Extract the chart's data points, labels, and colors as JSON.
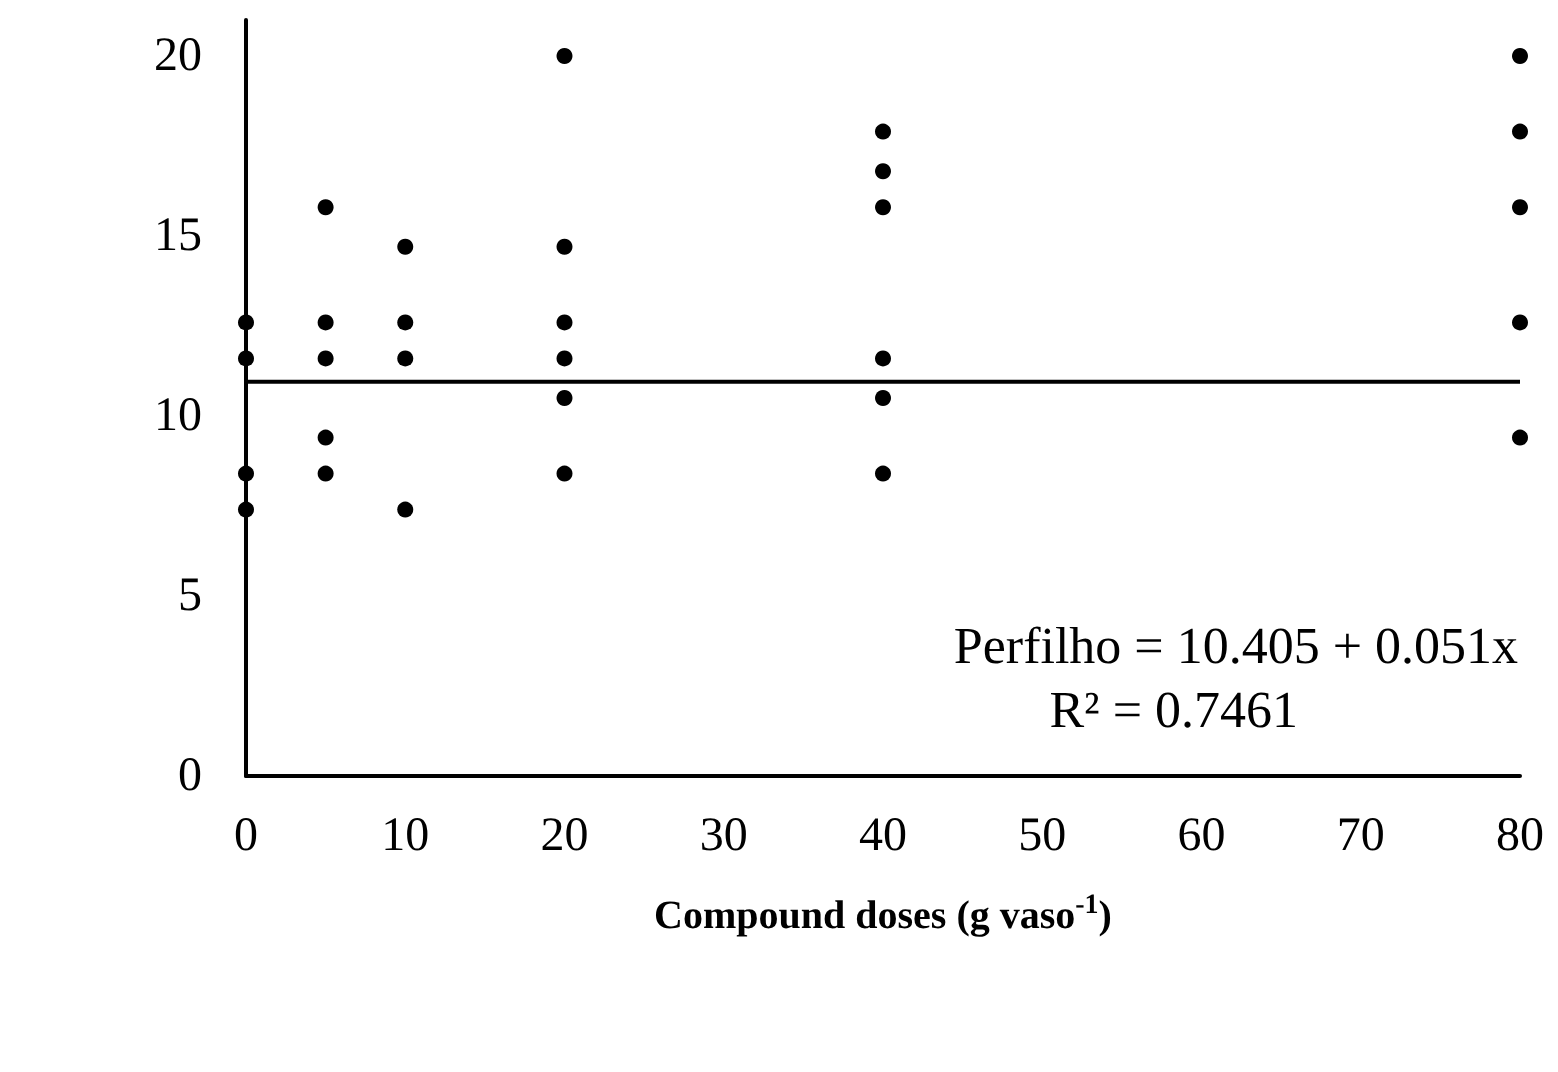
{
  "chart_data": {
    "type": "scatter",
    "xlabel": "Compound doses (g vaso$^{-1}$)",
    "xlim": [
      0,
      80
    ],
    "xticks": [
      0,
      10,
      20,
      30,
      40,
      50,
      60,
      70,
      80
    ],
    "ylim": [
      0,
      21
    ],
    "yticks": [
      0,
      5,
      10,
      15,
      20
    ],
    "grid": false,
    "marker": "circle",
    "series": [
      {
        "color": "#000000",
        "x": [
          0,
          0,
          0,
          0,
          5,
          5,
          5,
          5,
          5,
          10,
          10,
          10,
          10,
          20,
          20,
          20,
          20,
          20,
          20,
          40,
          40,
          40,
          40,
          40,
          40,
          80,
          80,
          80,
          80,
          80
        ],
        "values": [
          12.6,
          11.6,
          8.4,
          7.4,
          15.8,
          12.6,
          11.6,
          9.4,
          8.4,
          14.7,
          12.6,
          11.6,
          7.4,
          20,
          14.7,
          12.6,
          11.6,
          10.5,
          8.4,
          17.9,
          16.8,
          15.8,
          11.6,
          10.5,
          8.4,
          20,
          17.9,
          15.8,
          12.6,
          9.4
        ]
      },
      {
        "type": "line",
        "color": "#000000",
        "marker": "none",
        "line_style": "solid",
        "x": [
          0,
          80
        ],
        "values": [
          10.95,
          10.95
        ]
      }
    ],
    "annotations": [
      "Perfilho = 10.405 + 0.051x",
      "R² = 0.7461"
    ]
  }
}
